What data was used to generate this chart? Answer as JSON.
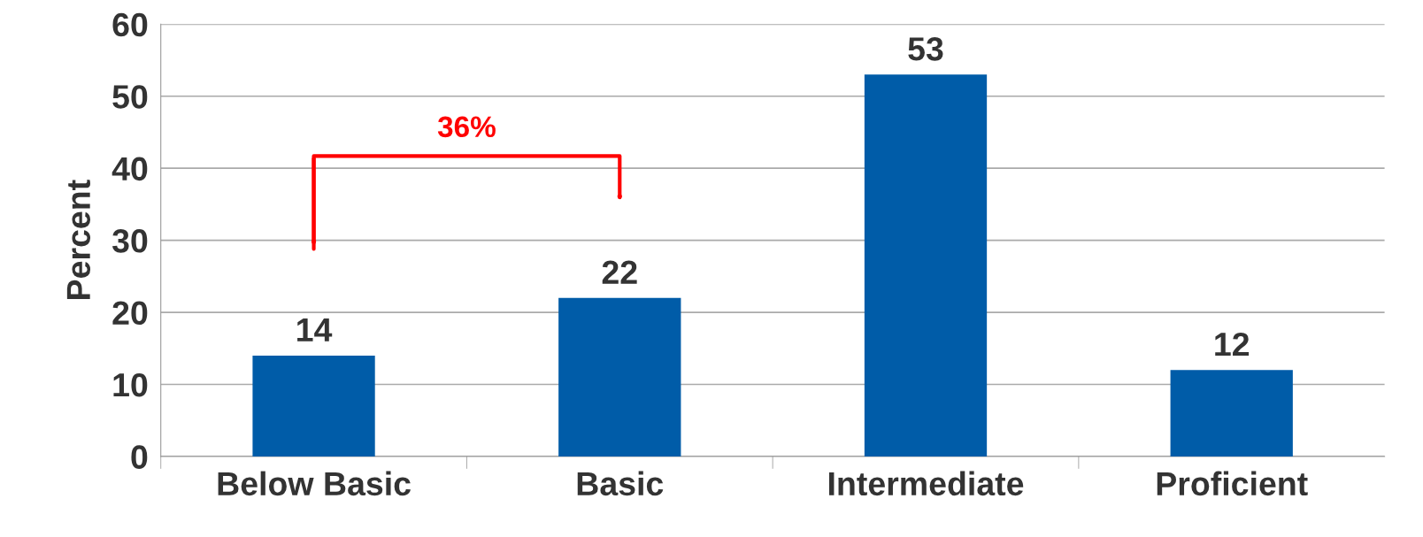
{
  "chart_data": {
    "type": "bar",
    "ylabel": "Percent",
    "categories": [
      "Below Basic",
      "Basic",
      "Intermediate",
      "Proficient"
    ],
    "values": [
      14,
      22,
      53,
      12
    ],
    "color": "#005ca8",
    "ylim": [
      0,
      60
    ],
    "yticks": [
      0,
      10,
      20,
      30,
      40,
      50,
      60
    ],
    "grid": "y",
    "data_labels": true,
    "annotations": [
      "36%"
    ]
  }
}
